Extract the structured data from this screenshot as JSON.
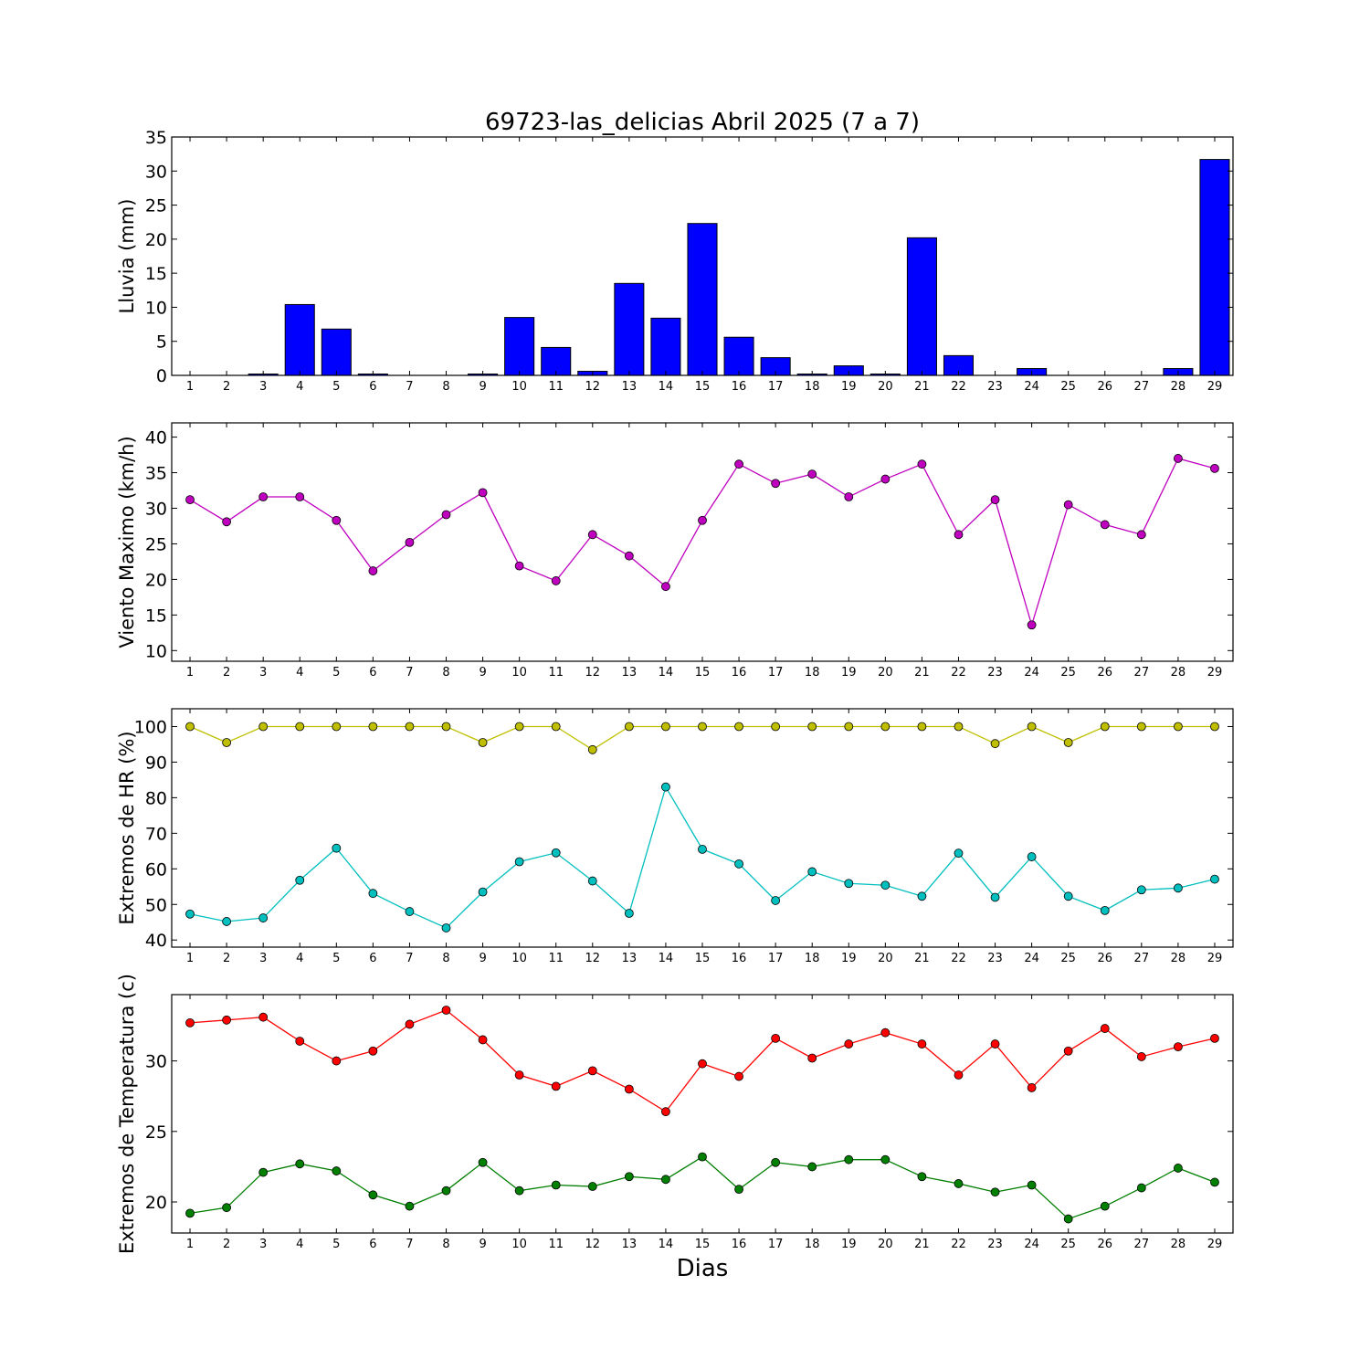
{
  "chart_data": {
    "title": "69723-las_delicias Abril 2025  (7 a 7)",
    "xlabel": "Dias",
    "x": [
      1,
      2,
      3,
      4,
      5,
      6,
      7,
      8,
      9,
      10,
      11,
      12,
      13,
      14,
      15,
      16,
      17,
      18,
      19,
      20,
      21,
      22,
      23,
      24,
      25,
      26,
      27,
      28,
      29
    ],
    "panels": [
      {
        "type": "bar",
        "ylabel": "Lluvia (mm)",
        "ylim": [
          0,
          35
        ],
        "yticks": [
          0,
          5,
          10,
          15,
          20,
          25,
          30,
          35
        ],
        "series": [
          {
            "color": "#0000ff",
            "values": [
              0,
              0,
              0.2,
              10.4,
              6.8,
              0.2,
              0,
              0,
              0.2,
              8.5,
              4.1,
              0.6,
              13.5,
              8.4,
              22.3,
              5.6,
              2.6,
              0.2,
              1.4,
              0.2,
              20.2,
              2.9,
              0,
              1.0,
              0,
              0,
              0,
              1.0,
              31.7
            ]
          }
        ]
      },
      {
        "type": "line",
        "ylabel": "Viento Maximo (km/h)",
        "ylim": [
          8.5,
          42
        ],
        "yticks": [
          10,
          15,
          20,
          25,
          30,
          35,
          40
        ],
        "series": [
          {
            "color": "#bf00bf",
            "values": [
              31.2,
              28.1,
              31.6,
              31.6,
              28.3,
              21.2,
              25.2,
              29.1,
              32.2,
              21.9,
              19.8,
              26.3,
              23.3,
              19.0,
              28.3,
              36.2,
              33.5,
              34.8,
              31.6,
              34.1,
              36.2,
              26.3,
              31.2,
              13.6,
              30.5,
              27.7,
              26.3,
              37.0,
              35.6
            ]
          }
        ]
      },
      {
        "type": "line",
        "ylabel": "Extremos de HR (%)",
        "ylim": [
          38,
          105
        ],
        "yticks": [
          40,
          50,
          60,
          70,
          80,
          90,
          100
        ],
        "series": [
          {
            "color": "#bfbf00",
            "values": [
              100,
              95.5,
              100,
              100,
              100,
              100,
              100,
              100,
              95.5,
              100,
              100,
              93.5,
              100,
              100,
              100,
              100,
              100,
              100,
              100,
              100,
              100,
              100,
              95.2,
              100,
              95.5,
              100,
              100,
              100,
              100
            ]
          },
          {
            "color": "#00bfbf",
            "values": [
              47.3,
              45.2,
              46.2,
              56.8,
              65.8,
              53.1,
              48.0,
              43.4,
              53.5,
              62.0,
              64.5,
              56.6,
              47.5,
              83.0,
              65.5,
              61.4,
              51.1,
              59.2,
              55.9,
              55.4,
              52.3,
              64.4,
              52.0,
              63.4,
              52.3,
              48.3,
              54.1,
              54.6,
              57.1
            ]
          }
        ]
      },
      {
        "type": "line",
        "ylabel": "Extremos de Temperatura (c)",
        "ylim": [
          17.8,
          34.7
        ],
        "yticks": [
          20,
          25,
          30
        ],
        "series": [
          {
            "color": "#ff0000",
            "values": [
              32.7,
              32.9,
              33.1,
              31.4,
              30.0,
              30.7,
              32.6,
              33.6,
              31.5,
              29.0,
              28.2,
              29.3,
              28.0,
              26.4,
              29.8,
              28.9,
              31.6,
              30.2,
              31.2,
              32.0,
              31.2,
              29.0,
              31.2,
              28.1,
              30.7,
              32.3,
              30.3,
              31.0,
              31.6
            ]
          },
          {
            "color": "#007f00",
            "values": [
              19.2,
              19.6,
              22.1,
              22.7,
              22.2,
              20.5,
              19.7,
              20.8,
              22.8,
              20.8,
              21.2,
              21.1,
              21.8,
              21.6,
              23.2,
              20.9,
              22.8,
              22.5,
              23.0,
              23.0,
              21.8,
              21.3,
              20.7,
              21.2,
              18.8,
              19.7,
              21.0,
              22.4,
              21.4
            ]
          }
        ]
      }
    ]
  }
}
